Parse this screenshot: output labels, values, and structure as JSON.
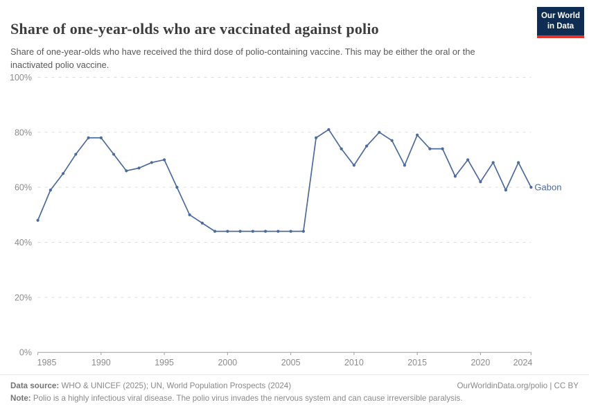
{
  "header": {
    "logo": {
      "line1": "Our World",
      "line2": "in Data",
      "bg_color": "#0f2d52",
      "accent_color": "#dd352b"
    }
  },
  "chart_data": {
    "type": "line",
    "title": "Share of one-year-olds who are vaccinated against polio",
    "subtitle": "Share of one-year-olds who have received the third dose of polio-containing vaccine. This may be either the oral or the inactivated polio vaccine.",
    "xlabel": "",
    "ylabel": "",
    "ylim": [
      0,
      100
    ],
    "grid": "horizontal-dashed",
    "legend": "entity-label-at-line-end",
    "x": [
      1985,
      1986,
      1987,
      1988,
      1989,
      1990,
      1991,
      1992,
      1993,
      1994,
      1995,
      1996,
      1997,
      1998,
      1999,
      2000,
      2001,
      2002,
      2003,
      2004,
      2005,
      2006,
      2007,
      2008,
      2009,
      2010,
      2011,
      2012,
      2013,
      2014,
      2015,
      2016,
      2017,
      2018,
      2019,
      2020,
      2021,
      2022,
      2023,
      2024
    ],
    "series": [
      {
        "name": "Gabon",
        "color": "#4C6A9C",
        "values": [
          48,
          59,
          65,
          72,
          78,
          78,
          72,
          66,
          67,
          69,
          70,
          60,
          50,
          47,
          44,
          44,
          44,
          44,
          44,
          44,
          44,
          44,
          78,
          81,
          74,
          68,
          75,
          80,
          77,
          68,
          79,
          74,
          74,
          64,
          70,
          62,
          69,
          59,
          69,
          60
        ]
      }
    ],
    "x_ticks": [
      1985,
      1990,
      1995,
      2000,
      2005,
      2010,
      2015,
      2020,
      2024
    ],
    "y_ticks": [
      0,
      20,
      40,
      60,
      80,
      100
    ],
    "y_tick_suffix": "%"
  },
  "footer": {
    "datasource_label": "Data source:",
    "datasource": "WHO & UNICEF (2025); UN, World Population Prospects (2024)",
    "right_link": "OurWorldinData.org/polio | CC BY",
    "note_label": "Note:",
    "note": "Polio is a highly infectious viral disease. The polio virus invades the nervous system and can cause irreversible paralysis."
  }
}
